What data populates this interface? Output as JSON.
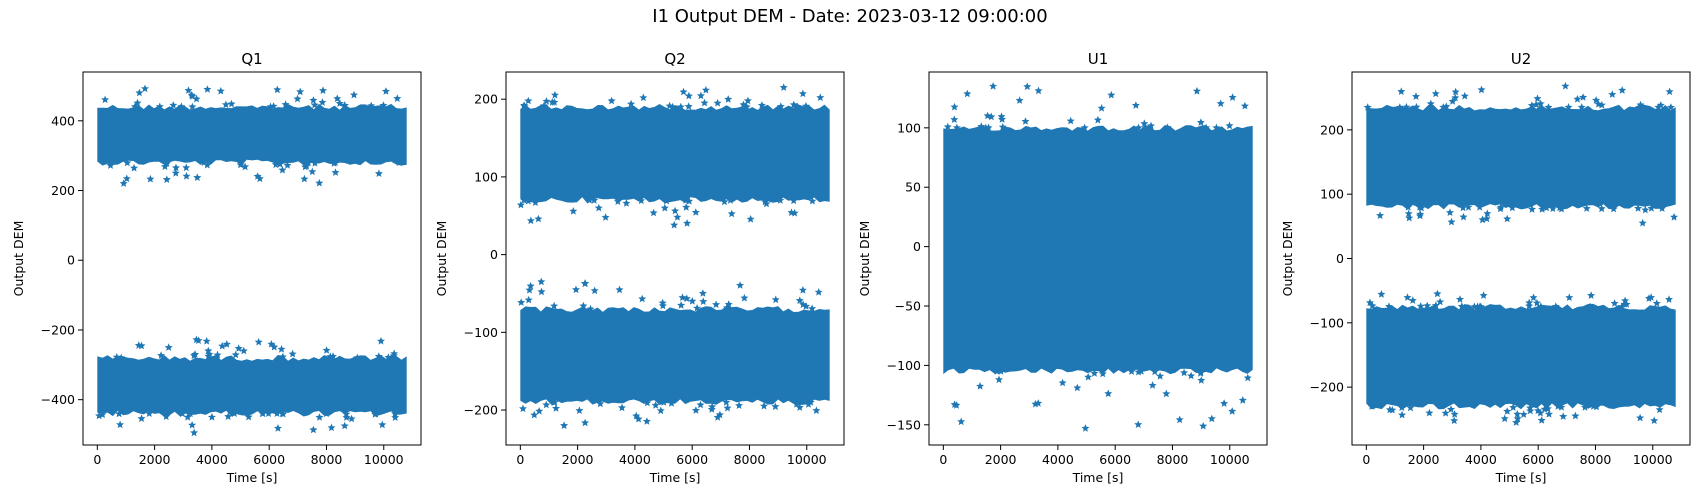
{
  "figure": {
    "title": "I1 Output DEM - Date: 2023-03-12 09:00:00"
  },
  "chart_data": [
    {
      "type": "scatter",
      "title": "Q1",
      "xlabel": "Time [s]",
      "ylabel": "Output DEM",
      "xlim": [
        -500,
        11300
      ],
      "ylim": [
        -530,
        540
      ],
      "xticks": [
        0,
        2000,
        4000,
        6000,
        8000,
        10000
      ],
      "yticks": [
        -400,
        -200,
        0,
        200,
        400
      ],
      "marker": "star",
      "color": "#1f77b4",
      "x_range": [
        0,
        10800
      ],
      "bands": [
        {
          "center": 345,
          "core_low": 280,
          "core_high": 440,
          "min": 220,
          "max": 492
        },
        {
          "center": -365,
          "core_low": -440,
          "core_high": -280,
          "min": -495,
          "max": -228
        }
      ]
    },
    {
      "type": "scatter",
      "title": "Q2",
      "xlabel": "Time [s]",
      "ylabel": "Output DEM",
      "xlim": [
        -500,
        11300
      ],
      "ylim": [
        -245,
        235
      ],
      "xticks": [
        0,
        2000,
        4000,
        6000,
        8000,
        10000
      ],
      "yticks": [
        -200,
        -100,
        0,
        100,
        200
      ],
      "marker": "star",
      "color": "#1f77b4",
      "x_range": [
        0,
        10800
      ],
      "bands": [
        {
          "center": 125,
          "core_low": 70,
          "core_high": 190,
          "min": 38,
          "max": 215
        },
        {
          "center": -135,
          "core_low": -190,
          "core_high": -70,
          "min": -220,
          "max": -35
        }
      ]
    },
    {
      "type": "scatter",
      "title": "U1",
      "xlabel": "Time [s]",
      "ylabel": "Output DEM",
      "xlim": [
        -500,
        11300
      ],
      "ylim": [
        -167,
        147
      ],
      "xticks": [
        0,
        2000,
        4000,
        6000,
        8000,
        10000
      ],
      "yticks": [
        -150,
        -100,
        -50,
        0,
        50,
        100
      ],
      "marker": "star",
      "color": "#1f77b4",
      "x_range": [
        0,
        10800
      ],
      "bands": [
        {
          "center": -5,
          "core_low": -105,
          "core_high": 100,
          "min": -153,
          "max": 135
        }
      ]
    },
    {
      "type": "scatter",
      "title": "U2",
      "xlabel": "Time [s]",
      "ylabel": "Output DEM",
      "xlim": [
        -500,
        11300
      ],
      "ylim": [
        -290,
        290
      ],
      "xticks": [
        0,
        2000,
        4000,
        6000,
        8000,
        10000
      ],
      "yticks": [
        -200,
        -100,
        0,
        100,
        200
      ],
      "marker": "star",
      "color": "#1f77b4",
      "x_range": [
        0,
        10800
      ],
      "bands": [
        {
          "center": 150,
          "core_low": 80,
          "core_high": 235,
          "min": 55,
          "max": 268
        },
        {
          "center": -150,
          "core_low": -230,
          "core_high": -75,
          "min": -255,
          "max": -55
        }
      ]
    }
  ]
}
